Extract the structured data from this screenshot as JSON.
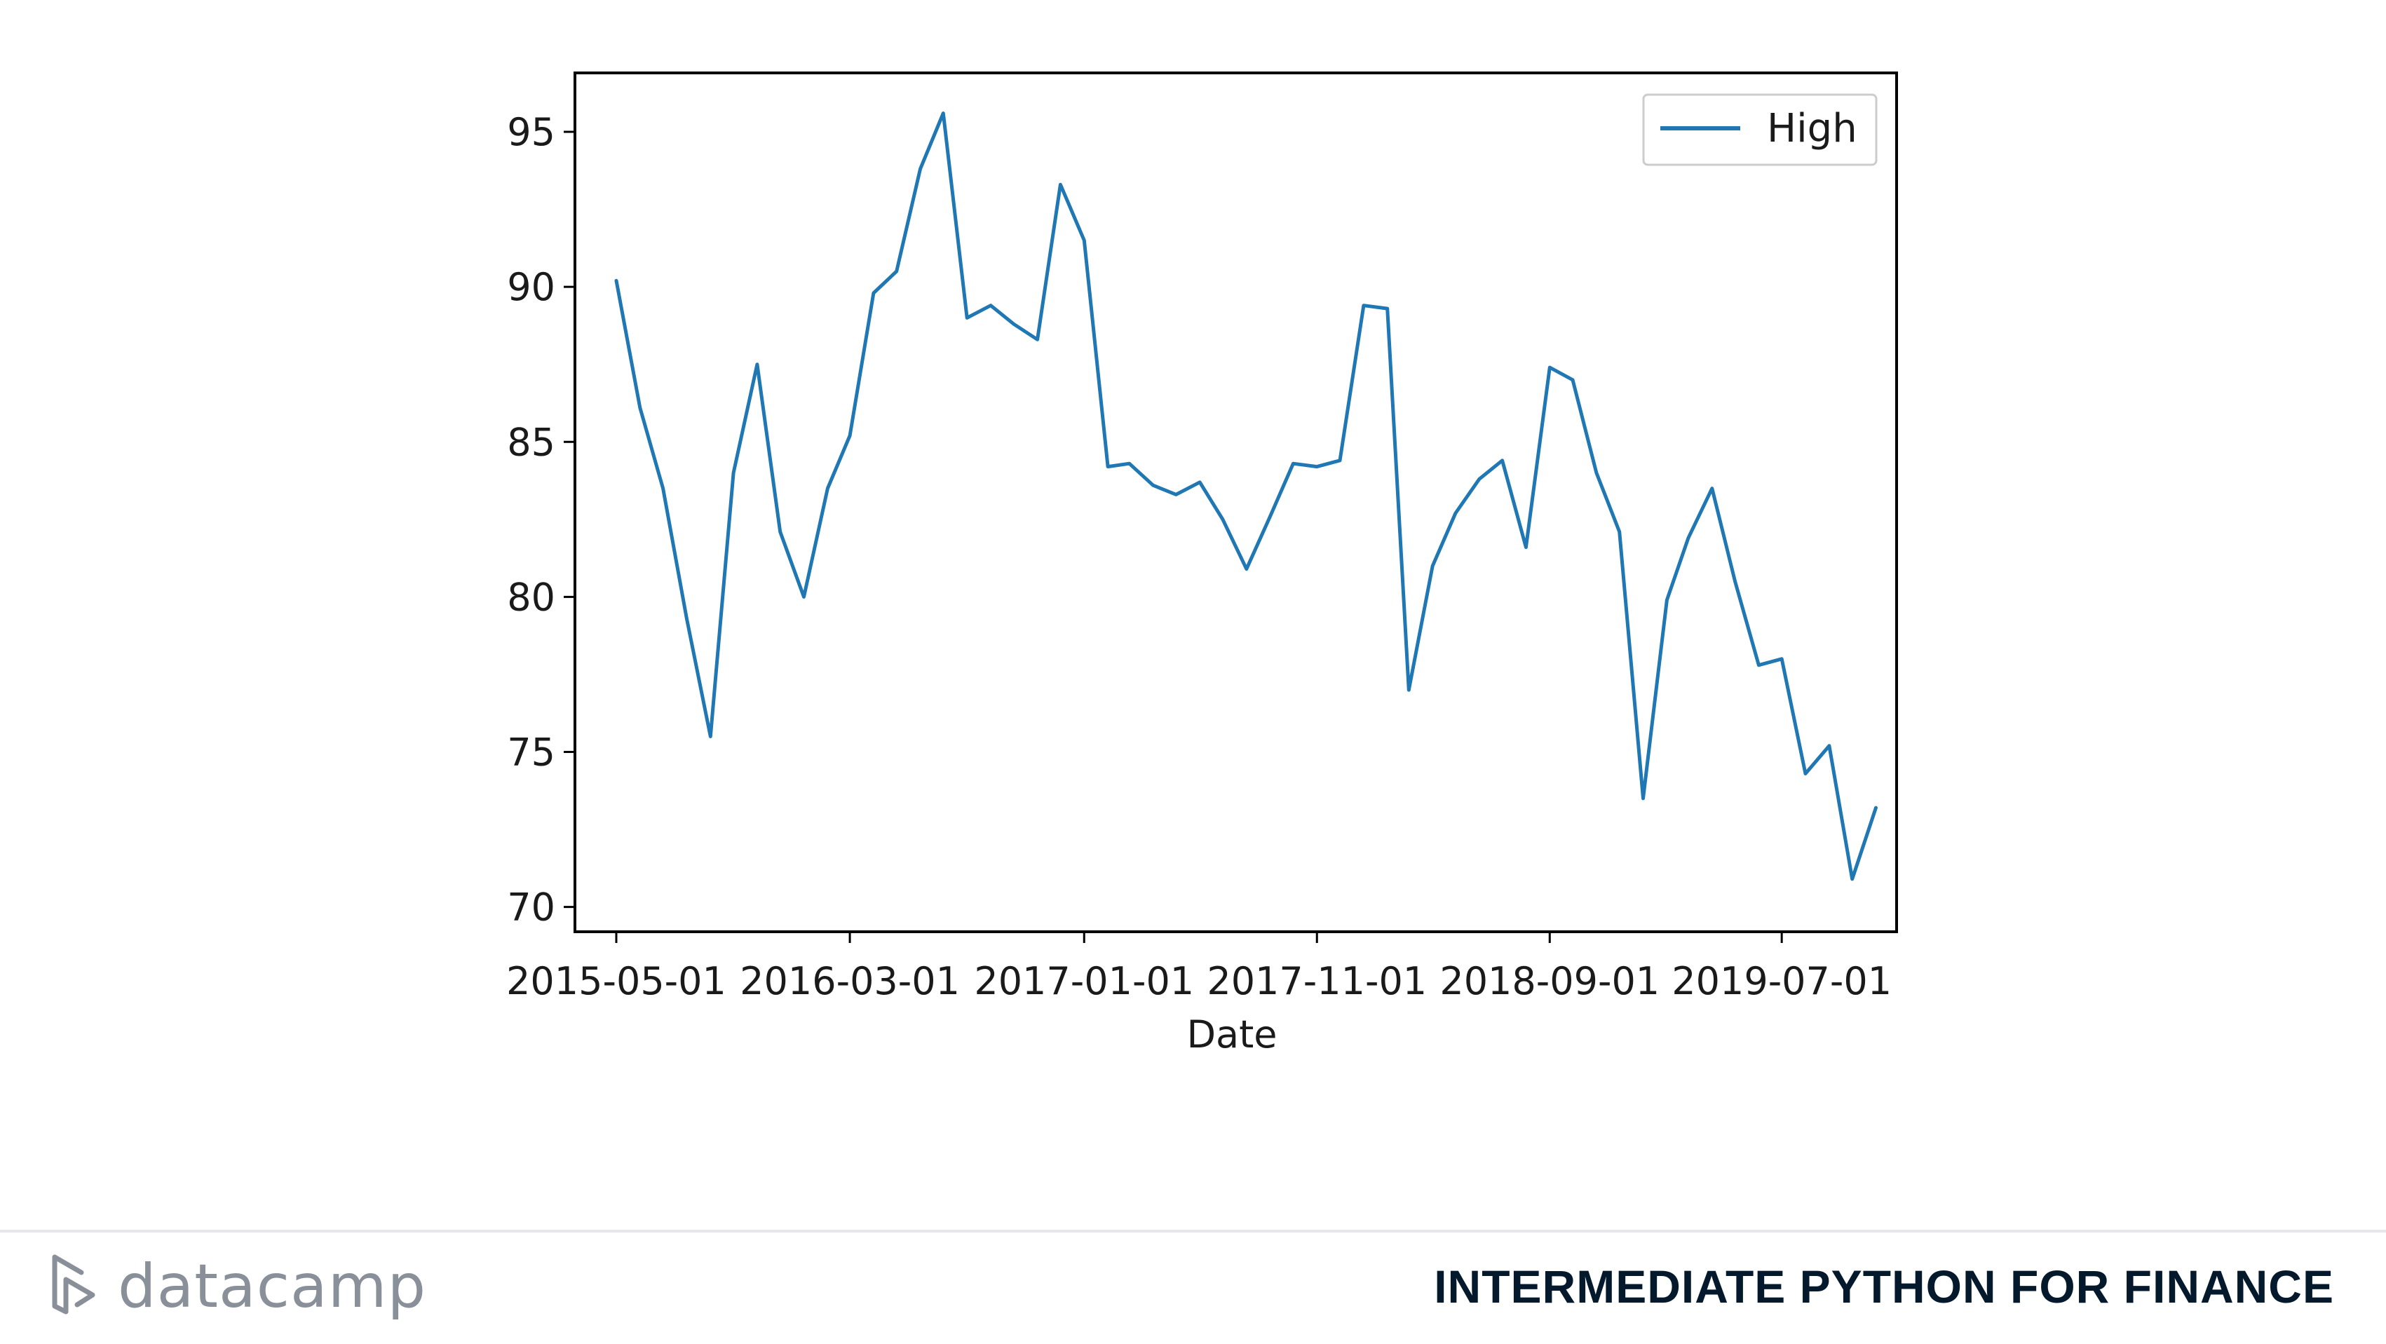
{
  "chart_data": {
    "type": "line",
    "title": "",
    "xlabel": "Date",
    "ylabel": "",
    "ylim": [
      69.2,
      96.9
    ],
    "xlim": [
      "2015-03-08",
      "2019-11-28"
    ],
    "x_ticks": [
      "2015-05-01",
      "2016-03-01",
      "2017-01-01",
      "2017-11-01",
      "2018-09-01",
      "2019-07-01"
    ],
    "y_ticks": [
      70,
      75,
      80,
      85,
      90,
      95
    ],
    "grid": false,
    "legend": "top-right",
    "series": [
      {
        "name": "High",
        "color": "#1f77b4",
        "x": [
          "2015-05-01",
          "2015-06-01",
          "2015-07-01",
          "2015-08-01",
          "2015-09-01",
          "2015-10-01",
          "2015-11-01",
          "2015-12-01",
          "2016-01-01",
          "2016-02-01",
          "2016-03-01",
          "2016-04-01",
          "2016-05-01",
          "2016-06-01",
          "2016-07-01",
          "2016-08-01",
          "2016-09-01",
          "2016-10-01",
          "2016-11-01",
          "2016-12-01",
          "2017-01-01",
          "2017-02-01",
          "2017-03-01",
          "2017-04-01",
          "2017-05-01",
          "2017-06-01",
          "2017-07-01",
          "2017-08-01",
          "2017-09-01",
          "2017-10-01",
          "2017-11-01",
          "2017-12-01",
          "2018-01-01",
          "2018-02-01",
          "2018-03-01",
          "2018-04-01",
          "2018-05-01",
          "2018-06-01",
          "2018-07-01",
          "2018-08-01",
          "2018-09-01",
          "2018-10-01",
          "2018-11-01",
          "2018-12-01",
          "2019-01-01",
          "2019-02-01",
          "2019-03-01",
          "2019-04-01",
          "2019-05-01",
          "2019-06-01",
          "2019-07-01",
          "2019-08-01",
          "2019-09-01",
          "2019-10-01",
          "2019-11-01"
        ],
        "values": [
          90.2,
          86.1,
          83.5,
          79.3,
          75.5,
          84.0,
          87.5,
          82.1,
          80.0,
          83.5,
          85.2,
          89.8,
          90.5,
          93.8,
          95.6,
          89.0,
          89.4,
          88.8,
          88.3,
          93.3,
          91.5,
          84.2,
          84.3,
          83.6,
          83.3,
          83.7,
          82.5,
          80.9,
          82.6,
          84.3,
          84.2,
          84.4,
          89.4,
          89.3,
          77.0,
          81.0,
          82.7,
          83.8,
          84.4,
          81.6,
          87.4,
          87.0,
          84.0,
          82.1,
          73.5,
          79.9,
          81.9,
          83.5,
          80.5,
          77.8,
          78.0,
          74.3,
          75.2,
          70.9,
          73.2
        ]
      }
    ]
  },
  "footer": {
    "brand": "datacamp",
    "course_title": "INTERMEDIATE PYTHON FOR FINANCE"
  },
  "icons": {
    "brand_logo": "datacamp-logo-icon"
  }
}
